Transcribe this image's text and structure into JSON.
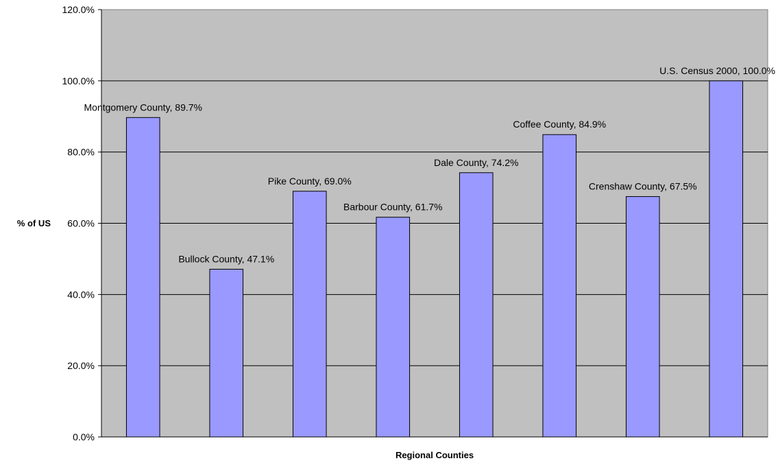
{
  "chart_data": {
    "type": "bar",
    "title": "",
    "xlabel": "Regional Counties",
    "ylabel": "% of US",
    "ylim": [
      0,
      120
    ],
    "yticks": [
      0,
      20,
      40,
      60,
      80,
      100,
      120
    ],
    "ytick_labels": [
      "0.0%",
      "20.0%",
      "40.0%",
      "60.0%",
      "80.0%",
      "100.0%",
      "120.0%"
    ],
    "grid": true,
    "legend": "none",
    "categories": [
      "Montgomery County",
      "Bullock County",
      "Pike County",
      "Barbour County",
      "Dale County",
      "Coffee County",
      "Crenshaw County",
      "U.S. Census 2000"
    ],
    "values": [
      89.7,
      47.1,
      69.0,
      61.7,
      74.2,
      84.9,
      67.5,
      100.0
    ],
    "data_labels": [
      "Montgomery County, 89.7%",
      "Bullock County, 47.1%",
      "Pike County, 69.0%",
      "Barbour County, 61.7%",
      "Dale County, 74.2%",
      "Coffee County, 84.9%",
      "Crenshaw County, 67.5%",
      "U.S. Census 2000, 100.0%"
    ],
    "colors": {
      "bar_fill": "#9999FF",
      "bar_stroke": "#000000",
      "plot_background": "#C0C0C0",
      "gridline": "#000000"
    }
  }
}
